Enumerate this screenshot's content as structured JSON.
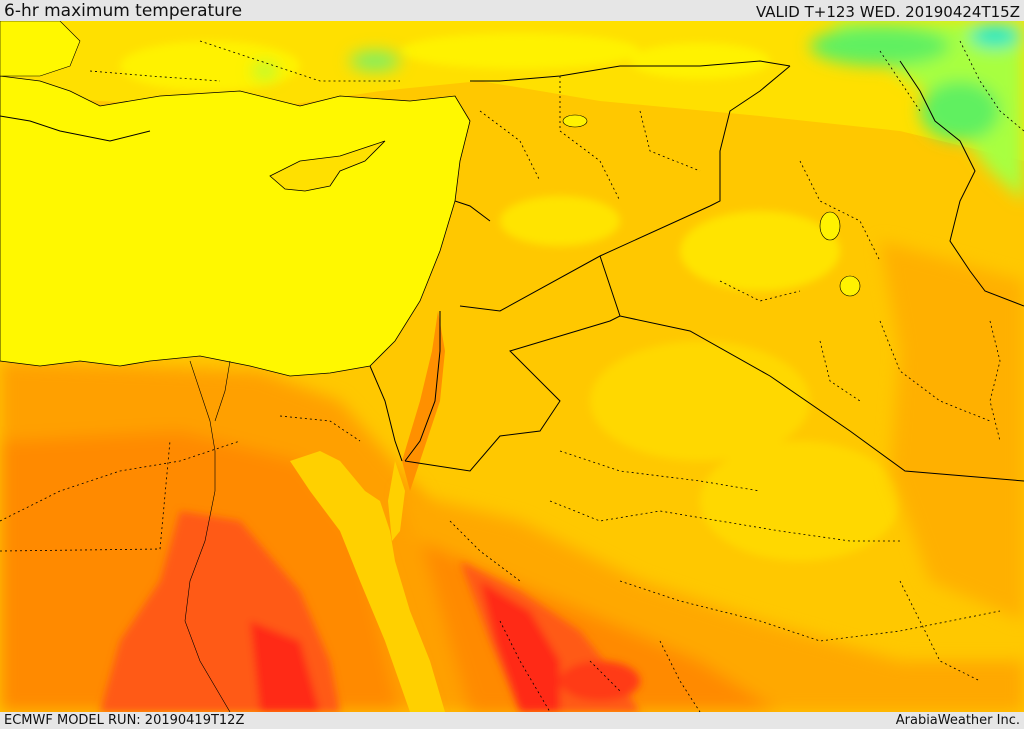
{
  "header": {
    "title": "6-hr maximum temperature",
    "valid": "VALID T+123 WED. 20190424T15Z"
  },
  "footer": {
    "model_run": "ECMWF MODEL RUN: 20190419T12Z",
    "credit": "ArabiaWeather Inc."
  },
  "colors": {
    "sea_yellow": "#fff800",
    "light_orange": "#ffd600",
    "orange": "#ffb000",
    "dark_orange": "#ff8a00",
    "red_orange": "#ff5a14",
    "red": "#ff2a14",
    "light_green": "#a8ff40",
    "green": "#60f060",
    "cyan": "#20e8c0",
    "border": "#000000"
  }
}
